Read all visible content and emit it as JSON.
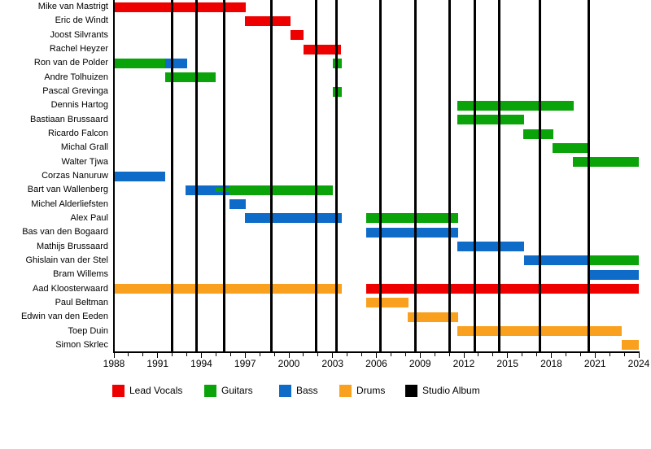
{
  "chart_data": {
    "type": "bar",
    "subtype": "band-member-timeline",
    "title": "",
    "x_axis": {
      "min": 1988,
      "max": 2024,
      "tick_interval": 1,
      "label_interval": 3,
      "tick_labels": [
        "1988",
        "1991",
        "1994",
        "1997",
        "2000",
        "2003",
        "2006",
        "2009",
        "2012",
        "2015",
        "2018",
        "2021",
        "2024"
      ]
    },
    "legend": [
      {
        "role": "lead_vocals",
        "label": "Lead Vocals"
      },
      {
        "role": "guitars",
        "label": "Guitars"
      },
      {
        "role": "bass",
        "label": "Bass"
      },
      {
        "role": "drums",
        "label": "Drums"
      },
      {
        "role": "studio_album",
        "label": "Studio Album"
      }
    ],
    "colors": {
      "lead_vocals": "#ee0000",
      "guitars": "#0aa30a",
      "bass": "#0e6cc8",
      "drums": "#f9a11f",
      "studio_album": "#000000"
    },
    "albums": [
      1992.0,
      1993.65,
      1995.55,
      1998.8,
      2001.85,
      2003.25,
      2006.3,
      2008.7,
      2011.0,
      2012.75,
      2014.45,
      2017.2,
      2020.55
    ],
    "members": [
      {
        "name": "Mike van Mastrigt",
        "segments": [
          {
            "role": "lead_vocals",
            "start": 1988,
            "end": 1997.05
          }
        ]
      },
      {
        "name": "Eric de Windt",
        "segments": [
          {
            "role": "lead_vocals",
            "start": 1997.0,
            "end": 2000.1
          }
        ]
      },
      {
        "name": "Joost Silvrants",
        "segments": [
          {
            "role": "lead_vocals",
            "start": 2000.1,
            "end": 2001.0
          }
        ]
      },
      {
        "name": "Rachel Heyzer",
        "segments": [
          {
            "role": "lead_vocals",
            "start": 2001.0,
            "end": 2003.6
          }
        ]
      },
      {
        "name": "Ron van de Polder",
        "segments": [
          {
            "role": "guitars",
            "start": 1988,
            "end": 1991.5
          },
          {
            "role": "bass",
            "start": 1991.5,
            "end": 1993.0
          },
          {
            "role": "guitars",
            "start": 2003.0,
            "end": 2003.6
          }
        ]
      },
      {
        "name": "Andre Tolhuizen",
        "segments": [
          {
            "role": "guitars",
            "start": 1991.5,
            "end": 1995.0
          }
        ]
      },
      {
        "name": "Pascal Grevinga",
        "segments": [
          {
            "role": "guitars",
            "start": 2003.0,
            "end": 2003.6
          }
        ]
      },
      {
        "name": "Dennis Hartog",
        "segments": [
          {
            "role": "guitars",
            "start": 2011.55,
            "end": 2019.55
          }
        ]
      },
      {
        "name": "Bastiaan Brussaard",
        "segments": [
          {
            "role": "guitars",
            "start": 2011.55,
            "end": 2016.15
          }
        ]
      },
      {
        "name": "Ricardo Falcon",
        "segments": [
          {
            "role": "guitars",
            "start": 2016.1,
            "end": 2018.15
          }
        ]
      },
      {
        "name": "Michal Grall",
        "segments": [
          {
            "role": "guitars",
            "start": 2018.1,
            "end": 2020.65
          }
        ]
      },
      {
        "name": "Walter Tjwa",
        "segments": [
          {
            "role": "guitars",
            "start": 2019.5,
            "end": 2024
          }
        ]
      },
      {
        "name": "Corzas Nanuruw",
        "segments": [
          {
            "role": "bass",
            "start": 1988,
            "end": 1991.5
          }
        ]
      },
      {
        "name": "Bart van Wallenberg",
        "segments": [
          {
            "role": "bass",
            "start": 1992.9,
            "end": 1995.9
          },
          {
            "role": "guitars",
            "start": 1995.0,
            "end": 1995.9,
            "thin": true
          },
          {
            "role": "guitars",
            "start": 1995.9,
            "end": 2003.0
          }
        ]
      },
      {
        "name": "Michel Alderliefsten",
        "segments": [
          {
            "role": "bass",
            "start": 1995.9,
            "end": 1997.05
          }
        ]
      },
      {
        "name": "Alex Paul",
        "segments": [
          {
            "role": "bass",
            "start": 1997.0,
            "end": 2003.65
          },
          {
            "role": "guitars",
            "start": 2005.3,
            "end": 2011.6
          }
        ]
      },
      {
        "name": "Bas van den Bogaard",
        "segments": [
          {
            "role": "bass",
            "start": 2005.3,
            "end": 2011.6
          }
        ]
      },
      {
        "name": "Mathijs Brussaard",
        "segments": [
          {
            "role": "bass",
            "start": 2011.55,
            "end": 2016.15
          }
        ]
      },
      {
        "name": "Ghislain van der Stel",
        "segments": [
          {
            "role": "bass",
            "start": 2016.15,
            "end": 2020.6
          },
          {
            "role": "guitars",
            "start": 2020.6,
            "end": 2024
          }
        ]
      },
      {
        "name": "Bram Willems",
        "segments": [
          {
            "role": "bass",
            "start": 2020.65,
            "end": 2024
          }
        ]
      },
      {
        "name": "Aad Kloosterwaard",
        "segments": [
          {
            "role": "drums",
            "start": 1988,
            "end": 2003.65
          },
          {
            "role": "lead_vocals",
            "start": 2005.3,
            "end": 2024
          }
        ]
      },
      {
        "name": "Paul Beltman",
        "segments": [
          {
            "role": "drums",
            "start": 2005.3,
            "end": 2008.2
          }
        ]
      },
      {
        "name": "Edwin van den Eeden",
        "segments": [
          {
            "role": "drums",
            "start": 2008.15,
            "end": 2011.6
          }
        ]
      },
      {
        "name": "Toep Duin",
        "segments": [
          {
            "role": "drums",
            "start": 2011.55,
            "end": 2022.8
          }
        ]
      },
      {
        "name": "Simon Skrlec",
        "segments": [
          {
            "role": "drums",
            "start": 2022.8,
            "end": 2024
          }
        ]
      }
    ]
  }
}
